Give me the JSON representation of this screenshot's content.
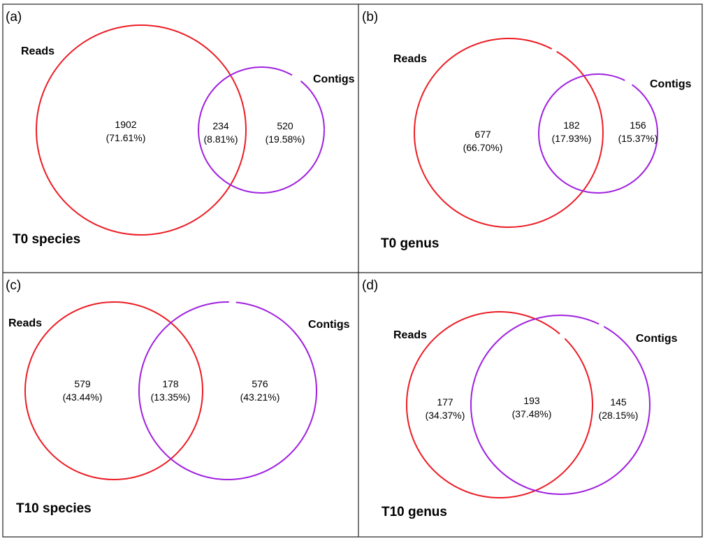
{
  "colors": {
    "reads": "#ec1c24",
    "contigs": "#a020e0",
    "border": "#222222"
  },
  "panels": [
    {
      "label": "(a)",
      "title": "T0 species",
      "reads_label": "Reads",
      "contigs_label": "Contigs",
      "reads_only": {
        "count": "1902",
        "pct": "(71.61%)"
      },
      "both": {
        "count": "234",
        "pct": "(8.81%)"
      },
      "contigs_only": {
        "count": "520",
        "pct": "(19.58%)"
      }
    },
    {
      "label": "(b)",
      "title": "T0 genus",
      "reads_label": "Reads",
      "contigs_label": "Contigs",
      "reads_only": {
        "count": "677",
        "pct": "(66.70%)"
      },
      "both": {
        "count": "182",
        "pct": "(17.93%)"
      },
      "contigs_only": {
        "count": "156",
        "pct": "(15.37%)"
      }
    },
    {
      "label": "(c)",
      "title": "T10 species",
      "reads_label": "Reads",
      "contigs_label": "Contigs",
      "reads_only": {
        "count": "579",
        "pct": "(43.44%)"
      },
      "both": {
        "count": "178",
        "pct": "(13.35%)"
      },
      "contigs_only": {
        "count": "576",
        "pct": "(43.21%)"
      }
    },
    {
      "label": "(d)",
      "title": "T10 genus",
      "reads_label": "Reads",
      "contigs_label": "Contigs",
      "reads_only": {
        "count": "177",
        "pct": "(34.37%)"
      },
      "both": {
        "count": "193",
        "pct": "(37.48%)"
      },
      "contigs_only": {
        "count": "145",
        "pct": "(28.15%)"
      }
    }
  ]
}
